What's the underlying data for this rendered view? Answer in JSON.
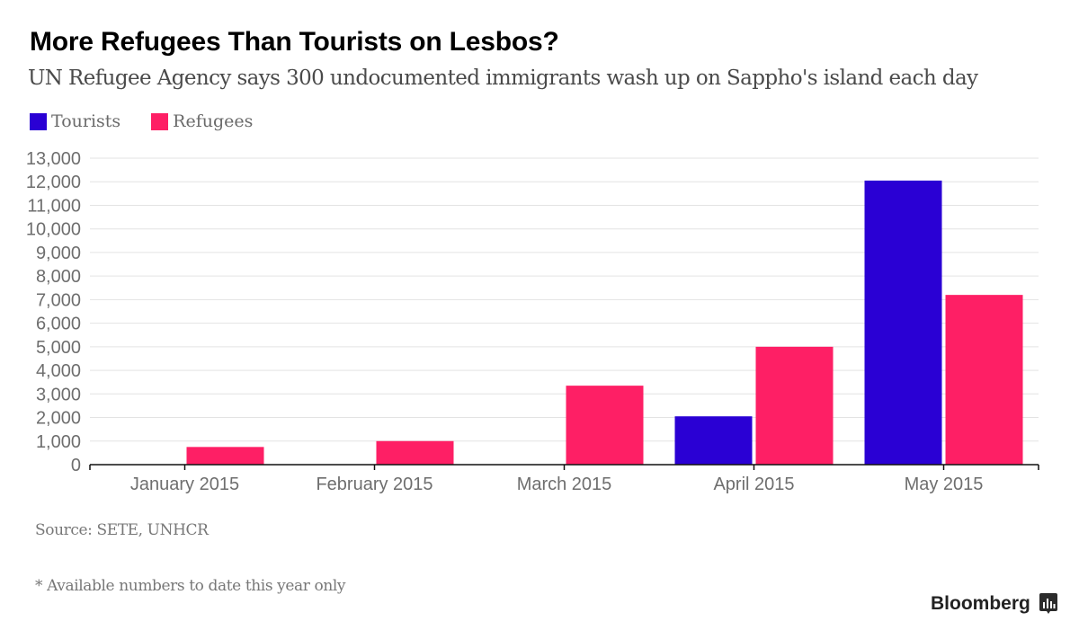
{
  "chart_data": {
    "type": "bar",
    "title": "More Refugees Than Tourists on Lesbos?",
    "subtitle": "UN Refugee Agency says 300 undocumented immigrants wash up on Sappho's island each day",
    "categories": [
      "January 2015",
      "February 2015",
      "March 2015",
      "April 2015",
      "May 2015"
    ],
    "series": [
      {
        "name": "Tourists",
        "color": "#2a00d4",
        "values": [
          null,
          null,
          null,
          2050,
          12050
        ]
      },
      {
        "name": "Refugees",
        "color": "#fe1f65",
        "values": [
          750,
          1000,
          3350,
          5000,
          7200
        ]
      }
    ],
    "yticks": [
      "0",
      "1,000",
      "2,000",
      "3,000",
      "4,000",
      "5,000",
      "6,000",
      "7,000",
      "8,000",
      "9,000",
      "10,000",
      "11,000",
      "12,000",
      "13,000"
    ],
    "ylim": [
      0,
      13000
    ],
    "xlabel": "",
    "ylabel": "",
    "grid": true,
    "legend_position": "top-left"
  },
  "footer": {
    "source": "Source: SETE, UNHCR",
    "note": "* Available numbers to date this year only",
    "brand": "Bloomberg"
  }
}
